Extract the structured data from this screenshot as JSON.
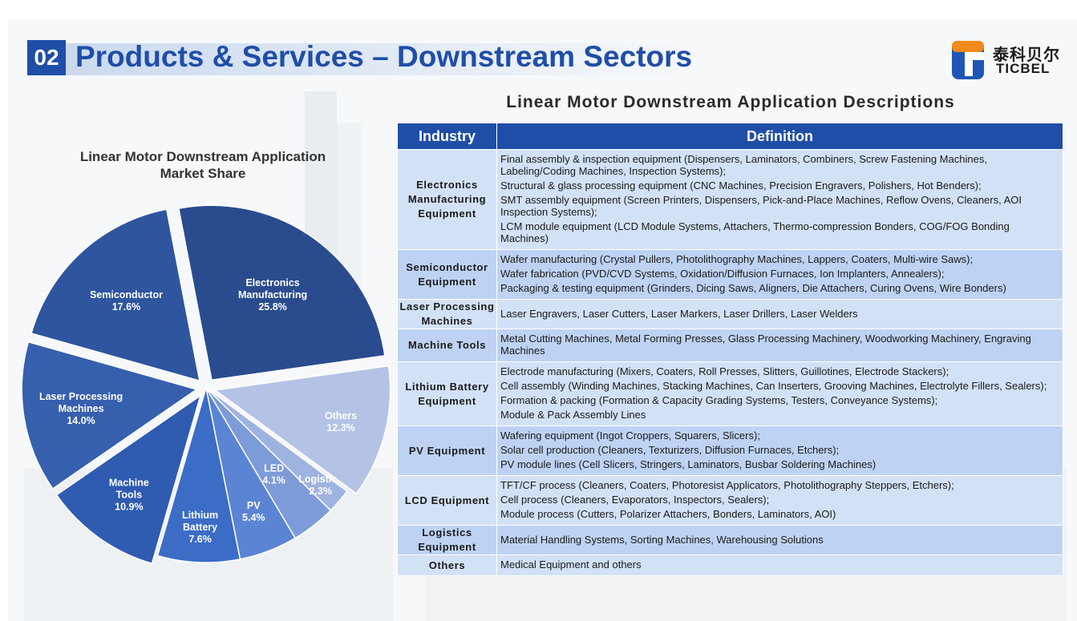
{
  "header": {
    "section_number": "02",
    "title": "Products & Services – Downstream Sectors",
    "logo_cn": "泰科贝尔",
    "logo_en": "TICBEL"
  },
  "chart_data": {
    "type": "pie",
    "title_line1": "Linear Motor Downstream Application",
    "title_line2": "Market Share",
    "categories": [
      "Electronics Manufacturing",
      "Semiconductor",
      "Laser Processing Machines",
      "Machine Tools",
      "Lithium Battery",
      "PV",
      "LED",
      "Logistics",
      "Others"
    ],
    "values": [
      25.8,
      17.6,
      14.0,
      10.9,
      7.6,
      5.4,
      4.1,
      2.3,
      12.3
    ],
    "label_lines": [
      [
        "Electronics",
        "Manufacturing",
        "25.8%"
      ],
      [
        "Semiconductor",
        "17.6%"
      ],
      [
        "Laser Processing",
        "Machines",
        "14.0%"
      ],
      [
        "Machine",
        "Tools",
        "10.9%"
      ],
      [
        "Lithium",
        "Battery",
        "7.6%"
      ],
      [
        "PV",
        "5.4%"
      ],
      [
        "LED",
        "4.1%"
      ],
      [
        "Logistics",
        "2.3%"
      ],
      [
        "Others",
        "12.3%"
      ]
    ],
    "colors": [
      "#2a4c8f",
      "#2e559e",
      "#3660ad",
      "#2f5bb0",
      "#3b6cc6",
      "#5b84d4",
      "#7d9bd8",
      "#9fb3e0",
      "#b4c2e6"
    ],
    "exploded": [
      true,
      true,
      true,
      true,
      false,
      false,
      false,
      false,
      true
    ],
    "start_angle_deg": 8,
    "direction": "counterclockwise"
  },
  "table": {
    "title": "Linear Motor Downstream Application Descriptions",
    "headers": [
      "Industry",
      "Definition"
    ],
    "rows": [
      {
        "industry": [
          "Electronics",
          "Manufacturing",
          "Equipment"
        ],
        "definitions": [
          "Final assembly & inspection equipment (Dispensers, Laminators, Combiners, Screw Fastening Machines, Labeling/Coding Machines, Inspection Systems);",
          "Structural & glass processing equipment (CNC Machines, Precision Engravers, Polishers, Hot Benders);",
          "SMT assembly equipment (Screen Printers, Dispensers, Pick-and-Place Machines, Reflow Ovens, Cleaners, AOI Inspection Systems);",
          "LCM module equipment (LCD Module Systems, Attachers, Thermo-compression Bonders, COG/FOG Bonding Machines)"
        ]
      },
      {
        "industry": [
          "Semiconductor",
          "Equipment"
        ],
        "definitions": [
          "Wafer manufacturing (Crystal Pullers, Photolithography Machines, Lappers, Coaters, Multi-wire Saws);",
          "Wafer fabrication (PVD/CVD Systems, Oxidation/Diffusion Furnaces, Ion Implanters, Annealers);",
          "Packaging & testing equipment (Grinders, Dicing Saws, Aligners, Die Attachers, Curing Ovens, Wire Bonders)"
        ]
      },
      {
        "industry": [
          "Laser Processing",
          "Machines"
        ],
        "definitions": [
          "Laser Engravers, Laser Cutters, Laser Markers, Laser Drillers, Laser Welders"
        ]
      },
      {
        "industry": [
          "Machine Tools"
        ],
        "definitions": [
          "Metal Cutting Machines, Metal Forming Presses, Glass Processing Machinery, Woodworking Machinery, Engraving Machines"
        ]
      },
      {
        "industry": [
          "Lithium Battery",
          "Equipment"
        ],
        "definitions": [
          "Electrode manufacturing (Mixers, Coaters, Roll Presses, Slitters, Guillotines, Electrode Stackers);",
          "Cell assembly (Winding Machines, Stacking Machines, Can Inserters, Grooving Machines, Electrolyte Fillers, Sealers);",
          "Formation & packing (Formation & Capacity Grading Systems, Testers, Conveyance Systems);",
          "Module & Pack Assembly Lines"
        ]
      },
      {
        "industry": [
          "PV Equipment"
        ],
        "definitions": [
          "Wafering equipment (Ingot Croppers, Squarers, Slicers);",
          "Solar cell production (Cleaners, Texturizers, Diffusion Furnaces, Etchers);",
          "PV module lines (Cell Slicers, Stringers, Laminators, Busbar Soldering Machines)"
        ]
      },
      {
        "industry": [
          "LCD Equipment"
        ],
        "definitions": [
          "TFT/CF process (Cleaners, Coaters, Photoresist Applicators, Photolithography Steppers, Etchers);",
          "Cell process (Cleaners, Evaporators, Inspectors, Sealers);",
          "Module process (Cutters, Polarizer Attachers, Bonders, Laminators, AOI)"
        ]
      },
      {
        "industry": [
          "Logistics",
          "Equipment"
        ],
        "definitions": [
          "Material Handling Systems, Sorting Machines, Warehousing Solutions"
        ]
      },
      {
        "industry": [
          "Others"
        ],
        "definitions": [
          "Medical Equipment and others"
        ]
      }
    ]
  }
}
